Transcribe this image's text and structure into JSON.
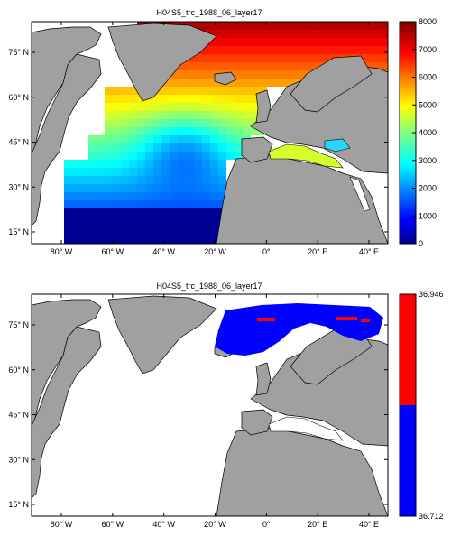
{
  "chart_data": [
    {
      "type": "heatmap",
      "title": "H04S5_trc_1988_06_layer17",
      "x_ticks": [
        "80° W",
        "60° W",
        "40° W",
        "20° W",
        "0°",
        "20° E",
        "40° E"
      ],
      "y_ticks": [
        "15° N",
        "30° N",
        "45° N",
        "60° N",
        "75° N"
      ],
      "colorbar": {
        "colormap": "jet",
        "ylim": [
          0,
          8000
        ],
        "ticks": [
          "0",
          "1000",
          "2000",
          "3000",
          "4000",
          "5000",
          "6000",
          "7000",
          "8000"
        ]
      },
      "land_color": "#a0a0a0",
      "grid": false
    },
    {
      "type": "heatmap",
      "title": "H04S5_trc_1988_06_layer17",
      "x_ticks": [
        "80° W",
        "60° W",
        "40° W",
        "20° W",
        "0°",
        "20° E",
        "40° E"
      ],
      "y_ticks": [
        "15° N",
        "30° N",
        "45° N",
        "60° N",
        "75° N"
      ],
      "colorbar": {
        "colormap": "two-color",
        "colors": [
          "#0000ff",
          "#ff0000"
        ],
        "ylim": [
          36.712,
          36.946
        ],
        "ticks": [
          "36.712",
          "36.946"
        ]
      },
      "land_color": "#a0a0a0",
      "grid": false
    }
  ]
}
